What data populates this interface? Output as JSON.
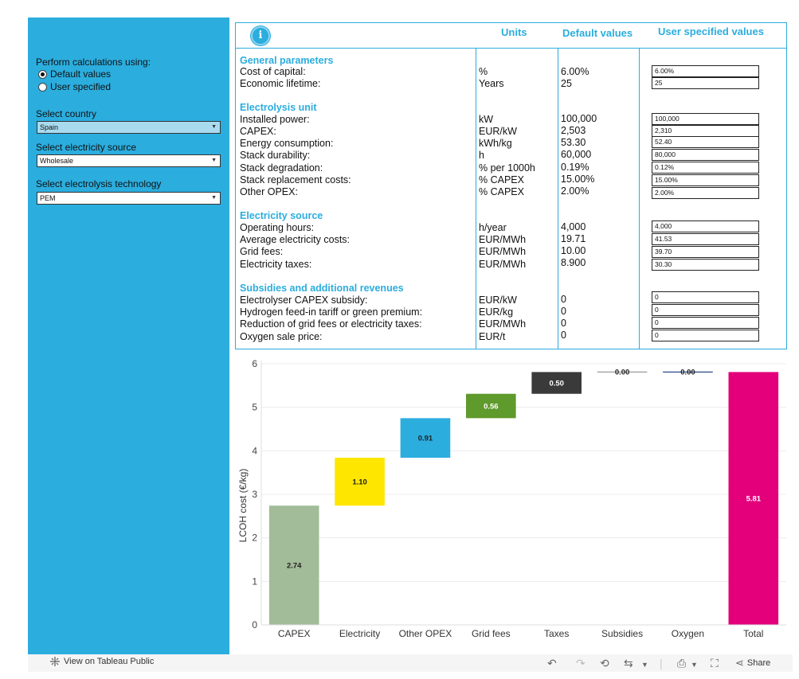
{
  "sidebar": {
    "calc_label": "Perform calculations using:",
    "calc_options": [
      "Default values",
      "User specified"
    ],
    "country_label": "Select country",
    "country_value": "Spain",
    "source_label": "Select electricity source",
    "source_value": "Wholesale",
    "tech_label": "Select electrolysis technology",
    "tech_value": "PEM"
  },
  "table": {
    "info_glyph": "i",
    "headers": {
      "units": "Units",
      "defaults": "Default values",
      "user": "User specified values"
    },
    "sections": [
      {
        "title": "General parameters",
        "rows": [
          {
            "label": "Cost of capital:",
            "unit": "%",
            "default": "6.00%",
            "user": "6.00%"
          },
          {
            "label": "Economic lifetime:",
            "unit": "Years",
            "default": "25",
            "user": "25"
          }
        ]
      },
      {
        "title": "Electrolysis unit",
        "rows": [
          {
            "label": "Installed power:",
            "unit": "kW",
            "default": "100,000",
            "user": "100,000"
          },
          {
            "label": "CAPEX:",
            "unit": "EUR/kW",
            "default": "2,503",
            "user": "2,310"
          },
          {
            "label": "Energy consumption:",
            "unit": "kWh/kg",
            "default": "53.30",
            "user": "52.40"
          },
          {
            "label": "Stack durability:",
            "unit": "h",
            "default": "60,000",
            "user": "80,000"
          },
          {
            "label": "Stack degradation:",
            "unit": "% per 1000h",
            "default": "0.19%",
            "user": "0.12%"
          },
          {
            "label": "Stack replacement costs:",
            "unit": "% CAPEX",
            "default": "15.00%",
            "user": "15.00%"
          },
          {
            "label": "Other OPEX:",
            "unit": "% CAPEX",
            "default": "2.00%",
            "user": "2.00%"
          }
        ]
      },
      {
        "title": "Electricity source",
        "rows": [
          {
            "label": "Operating hours:",
            "unit": "h/year",
            "default": "4,000",
            "user": "4,000"
          },
          {
            "label": "Average electricity costs:",
            "unit": "EUR/MWh",
            "default": "19.71",
            "user": "41.53"
          },
          {
            "label": "Grid fees:",
            "unit": "EUR/MWh",
            "default": "10.00",
            "user": "39.70"
          },
          {
            "label": "Electricity taxes:",
            "unit": "EUR/MWh",
            "default": "8.900",
            "user": "30.30"
          }
        ]
      },
      {
        "title": "Subsidies and additional revenues",
        "rows": [
          {
            "label": "Electrolyser CAPEX subsidy:",
            "unit": "EUR/kW",
            "default": "0",
            "user": "0"
          },
          {
            "label": "Hydrogen feed-in tariff or green premium:",
            "unit": "EUR/kg",
            "default": "0",
            "user": "0"
          },
          {
            "label": "Reduction of grid fees or electricity taxes:",
            "unit": "EUR/MWh",
            "default": "0",
            "user": "0"
          },
          {
            "label": "Oxygen sale price:",
            "unit": "EUR/t",
            "default": "0",
            "user": "0"
          }
        ]
      }
    ]
  },
  "chart_data": {
    "type": "bar",
    "subtype": "waterfall",
    "title": "",
    "xlabel": "",
    "ylabel": "LCOH cost (€/kg)",
    "ylim": [
      0,
      6
    ],
    "yticks": [
      0,
      1,
      2,
      3,
      4,
      5,
      6
    ],
    "grid": true,
    "categories": [
      "CAPEX",
      "Electricity",
      "Other OPEX",
      "Grid fees",
      "Taxes",
      "Subsidies",
      "Oxygen",
      "Total"
    ],
    "values": [
      2.74,
      1.1,
      0.91,
      0.56,
      0.5,
      0.0,
      0.0,
      5.81
    ],
    "labels": [
      "2.74",
      "1.10",
      "0.91",
      "0.56",
      "0.50",
      "0.00",
      "0.00",
      "5.81"
    ],
    "colors": [
      "#a2bb98",
      "#ffe600",
      "#2badde",
      "#5f9a2c",
      "#3a3a3a",
      "#9a9a9a",
      "#2a4a8a",
      "#e3007a"
    ],
    "label_colors": [
      "#222222",
      "#222222",
      "#222222",
      "#ffffff",
      "#ffffff",
      "#222222",
      "#222222",
      "#ffffff"
    ],
    "is_total": [
      false,
      false,
      false,
      false,
      false,
      false,
      false,
      true
    ]
  },
  "footer": {
    "tableau_link": "View on Tableau Public",
    "share_label": "Share"
  }
}
